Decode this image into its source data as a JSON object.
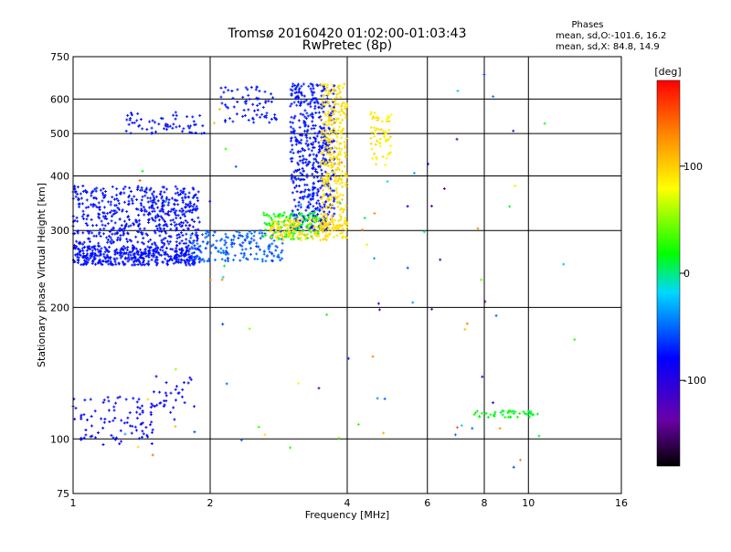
{
  "chart_data": {
    "type": "scatter",
    "title": "Tromsø 20160420 01:02:00-01:03:43",
    "subtitle": "RwPretec (8p)",
    "xlabel": "Frequency [MHz]",
    "ylabel": "Stationary phase Virtual Height [km]",
    "x_scale": "log",
    "y_scale": "log",
    "xlim": [
      1,
      16
    ],
    "ylim": [
      75,
      750
    ],
    "x_ticks": [
      "1",
      "2",
      "4",
      "6",
      "8",
      "10",
      "16"
    ],
    "y_ticks": [
      "75",
      "100",
      "200",
      "300",
      "400",
      "500",
      "600",
      "750"
    ],
    "grid_x": [
      1,
      2,
      4,
      6,
      8,
      10,
      16
    ],
    "grid_y": [
      100,
      200,
      300,
      400,
      500,
      600
    ],
    "legend": {
      "title": "Phases",
      "line1": "mean, sd,O:-101.6, 16.2",
      "line2": "mean, sd,X:  84.8, 14.9"
    },
    "colorbar": {
      "label": "[deg]",
      "range": [
        -180,
        180
      ],
      "ticks": [
        "100",
        "0",
        "-100"
      ],
      "tick_values": [
        100,
        0,
        -100
      ]
    },
    "groups": [
      {
        "x": [
          1.0,
          1.9
        ],
        "y": [
          250,
          380
        ],
        "phase": [
          -100,
          -90
        ],
        "n": 700
      },
      {
        "x": [
          1.0,
          1.85
        ],
        "y": [
          250,
          275
        ],
        "phase": [
          -100,
          -90
        ],
        "n": 250
      },
      {
        "x": [
          1.8,
          2.9
        ],
        "y": [
          255,
          300
        ],
        "phase": [
          -80,
          -60
        ],
        "n": 180
      },
      {
        "x": [
          3.0,
          3.4
        ],
        "y": [
          300,
          650
        ],
        "phase": [
          -100,
          -85
        ],
        "n": 280
      },
      {
        "x": [
          3.35,
          3.75
        ],
        "y": [
          300,
          650
        ],
        "phase": [
          -100,
          -90
        ],
        "n": 260
      },
      {
        "x": [
          2.6,
          3.5
        ],
        "y": [
          285,
          330
        ],
        "phase": [
          -10,
          10
        ],
        "n": 120
      },
      {
        "x": [
          2.7,
          4.0
        ],
        "y": [
          285,
          320
        ],
        "phase": [
          80,
          95
        ],
        "n": 160
      },
      {
        "x": [
          3.5,
          4.0
        ],
        "y": [
          300,
          650
        ],
        "phase": [
          80,
          95
        ],
        "n": 320
      },
      {
        "x": [
          4.5,
          5.0
        ],
        "y": [
          420,
          560
        ],
        "phase": [
          70,
          95
        ],
        "n": 60
      },
      {
        "x": [
          1.3,
          2.0
        ],
        "y": [
          500,
          560
        ],
        "phase": [
          -100,
          -90
        ],
        "n": 60
      },
      {
        "x": [
          2.1,
          2.8
        ],
        "y": [
          530,
          640
        ],
        "phase": [
          -100,
          -85
        ],
        "n": 70
      },
      {
        "x": [
          1.0,
          1.5
        ],
        "y": [
          97,
          125
        ],
        "phase": [
          -105,
          -95
        ],
        "n": 90
      },
      {
        "x": [
          1.5,
          1.85
        ],
        "y": [
          115,
          140
        ],
        "phase": [
          -105,
          -95
        ],
        "n": 30
      },
      {
        "x": [
          7.5,
          10.5
        ],
        "y": [
          112,
          116
        ],
        "phase": [
          -10,
          10
        ],
        "n": 45
      },
      {
        "x": [
          1.3,
          13.0
        ],
        "y": [
          80,
          700
        ],
        "phase": [
          -150,
          150
        ],
        "n": 90
      }
    ],
    "annotation_note": ""
  }
}
